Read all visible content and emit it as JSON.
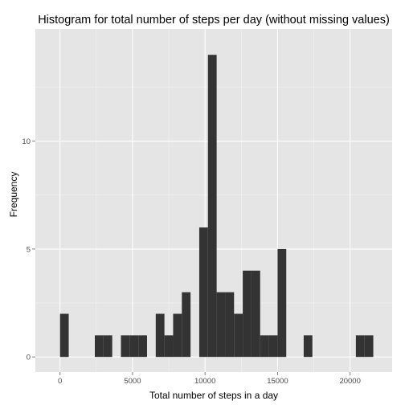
{
  "chart_data": {
    "type": "bar",
    "title": "Histogram for total number of steps per day (without missing values)",
    "xlabel": "Total number of steps in a day",
    "ylabel": "Frequency",
    "xlim": [
      -1700,
      22900
    ],
    "ylim": [
      -0.7,
      15.2
    ],
    "x_ticks": [
      0,
      5000,
      10000,
      15000,
      20000
    ],
    "x_tick_labels": [
      "0",
      "5000",
      "10000",
      "15000",
      "20000"
    ],
    "y_ticks": [
      0,
      5,
      10
    ],
    "y_tick_labels": [
      "0",
      "5",
      "10"
    ],
    "grid": true,
    "bins": [
      {
        "x0": 0,
        "x1": 600,
        "count": 2
      },
      {
        "x0": 2400,
        "x1": 3000,
        "count": 1
      },
      {
        "x0": 3000,
        "x1": 3600,
        "count": 1
      },
      {
        "x0": 4200,
        "x1": 4800,
        "count": 1
      },
      {
        "x0": 4800,
        "x1": 5400,
        "count": 1
      },
      {
        "x0": 5400,
        "x1": 6000,
        "count": 1
      },
      {
        "x0": 6600,
        "x1": 7200,
        "count": 2
      },
      {
        "x0": 7200,
        "x1": 7800,
        "count": 1
      },
      {
        "x0": 7800,
        "x1": 8400,
        "count": 2
      },
      {
        "x0": 8400,
        "x1": 9000,
        "count": 3
      },
      {
        "x0": 9600,
        "x1": 10200,
        "count": 6
      },
      {
        "x0": 10200,
        "x1": 10800,
        "count": 14
      },
      {
        "x0": 10800,
        "x1": 11400,
        "count": 3
      },
      {
        "x0": 11400,
        "x1": 12000,
        "count": 3
      },
      {
        "x0": 12000,
        "x1": 12600,
        "count": 2
      },
      {
        "x0": 12600,
        "x1": 13200,
        "count": 4
      },
      {
        "x0": 13200,
        "x1": 13800,
        "count": 4
      },
      {
        "x0": 13800,
        "x1": 14400,
        "count": 1
      },
      {
        "x0": 14400,
        "x1": 15000,
        "count": 1
      },
      {
        "x0": 15000,
        "x1": 15600,
        "count": 5
      },
      {
        "x0": 16800,
        "x1": 17400,
        "count": 1
      },
      {
        "x0": 20400,
        "x1": 21000,
        "count": 1
      },
      {
        "x0": 21000,
        "x1": 21600,
        "count": 1
      }
    ],
    "colors": {
      "panel": "#e5e5e5",
      "grid_major": "#ffffff",
      "grid_minor": "#f2f2f2",
      "bar": "#333333",
      "tick": "#7f7f7f"
    }
  }
}
